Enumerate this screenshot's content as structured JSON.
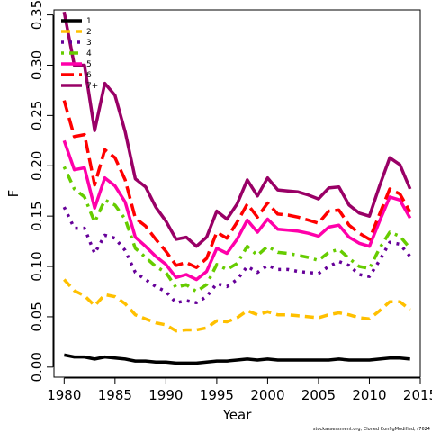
{
  "chart_data": {
    "type": "line",
    "xlabel": "Year",
    "ylabel": "F",
    "xlim": [
      1979,
      2015
    ],
    "ylim": [
      -0.01,
      0.355
    ],
    "xticks": [
      1980,
      1985,
      1990,
      1995,
      2000,
      2005,
      2010,
      2015
    ],
    "yticks": [
      0.0,
      0.05,
      0.1,
      0.15,
      0.2,
      0.25,
      0.3,
      0.35
    ],
    "ytick_labels": [
      "0.00",
      "0.05",
      "0.10",
      "0.15",
      "0.20",
      "0.25",
      "0.30",
      "0.35"
    ],
    "grid": false,
    "legend_position": "top-left",
    "x": [
      1980,
      1981,
      1982,
      1983,
      1984,
      1985,
      1986,
      1987,
      1988,
      1989,
      1990,
      1991,
      1992,
      1993,
      1994,
      1995,
      1996,
      1997,
      1998,
      1999,
      2000,
      2001,
      2002,
      2003,
      2004,
      2005,
      2006,
      2007,
      2008,
      2009,
      2010,
      2011,
      2012,
      2013,
      2014
    ],
    "series": [
      {
        "name": "1",
        "color": "#000000",
        "dash": "solid",
        "values": [
          0.012,
          0.01,
          0.01,
          0.008,
          0.01,
          0.009,
          0.008,
          0.006,
          0.006,
          0.005,
          0.005,
          0.004,
          0.004,
          0.004,
          0.005,
          0.006,
          0.006,
          0.007,
          0.008,
          0.007,
          0.008,
          0.007,
          0.007,
          0.007,
          0.007,
          0.007,
          0.007,
          0.008,
          0.007,
          0.007,
          0.007,
          0.008,
          0.009,
          0.009,
          0.008
        ]
      },
      {
        "name": "2",
        "color": "#ffc000",
        "dash": "dashed",
        "values": [
          0.087,
          0.076,
          0.071,
          0.061,
          0.072,
          0.07,
          0.063,
          0.052,
          0.048,
          0.044,
          0.042,
          0.036,
          0.037,
          0.037,
          0.039,
          0.046,
          0.045,
          0.049,
          0.056,
          0.052,
          0.055,
          0.052,
          0.052,
          0.051,
          0.05,
          0.049,
          0.052,
          0.054,
          0.052,
          0.049,
          0.048,
          0.056,
          0.065,
          0.065,
          0.057
        ]
      },
      {
        "name": "3",
        "color": "#660099",
        "dash": "dotted",
        "values": [
          0.159,
          0.138,
          0.138,
          0.113,
          0.131,
          0.128,
          0.116,
          0.094,
          0.087,
          0.08,
          0.075,
          0.064,
          0.066,
          0.064,
          0.07,
          0.083,
          0.08,
          0.087,
          0.1,
          0.094,
          0.101,
          0.097,
          0.097,
          0.095,
          0.094,
          0.093,
          0.1,
          0.105,
          0.101,
          0.092,
          0.09,
          0.106,
          0.124,
          0.122,
          0.11
        ]
      },
      {
        "name": "4",
        "color": "#66cc00",
        "dash": "dashdot",
        "values": [
          0.199,
          0.177,
          0.169,
          0.144,
          0.166,
          0.161,
          0.147,
          0.118,
          0.109,
          0.1,
          0.094,
          0.079,
          0.082,
          0.075,
          0.082,
          0.102,
          0.097,
          0.103,
          0.12,
          0.111,
          0.12,
          0.114,
          0.113,
          0.111,
          0.109,
          0.106,
          0.114,
          0.117,
          0.108,
          0.1,
          0.098,
          0.118,
          0.134,
          0.13,
          0.118
        ]
      },
      {
        "name": "5",
        "color": "#ff00aa",
        "dash": "solid",
        "values": [
          0.225,
          0.196,
          0.198,
          0.158,
          0.188,
          0.18,
          0.164,
          0.129,
          0.12,
          0.11,
          0.102,
          0.089,
          0.092,
          0.087,
          0.095,
          0.118,
          0.113,
          0.127,
          0.146,
          0.134,
          0.147,
          0.137,
          0.136,
          0.135,
          0.133,
          0.13,
          0.139,
          0.141,
          0.129,
          0.123,
          0.12,
          0.145,
          0.169,
          0.166,
          0.148
        ]
      },
      {
        "name": "6",
        "color": "#ff0000",
        "dash": "longdash",
        "values": [
          0.265,
          0.229,
          0.231,
          0.181,
          0.216,
          0.208,
          0.186,
          0.148,
          0.14,
          0.127,
          0.115,
          0.101,
          0.104,
          0.099,
          0.108,
          0.134,
          0.128,
          0.144,
          0.162,
          0.149,
          0.163,
          0.152,
          0.151,
          0.149,
          0.146,
          0.143,
          0.155,
          0.156,
          0.141,
          0.133,
          0.127,
          0.152,
          0.177,
          0.172,
          0.154
        ]
      },
      {
        "name": "7+",
        "color": "#990066",
        "dash": "solid",
        "values": [
          0.353,
          0.3,
          0.3,
          0.235,
          0.282,
          0.27,
          0.234,
          0.187,
          0.179,
          0.159,
          0.145,
          0.127,
          0.129,
          0.12,
          0.129,
          0.155,
          0.147,
          0.162,
          0.186,
          0.17,
          0.188,
          0.176,
          0.175,
          0.174,
          0.171,
          0.167,
          0.178,
          0.179,
          0.161,
          0.153,
          0.15,
          0.18,
          0.208,
          0.201,
          0.177
        ]
      }
    ]
  },
  "footer": {
    "note": "stockassessment.org, Cloned ConfigModified, r7624"
  }
}
